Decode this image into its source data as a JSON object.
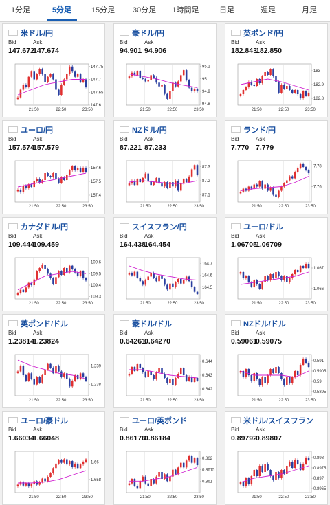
{
  "tabs": [
    {
      "label": "1分足",
      "active": false
    },
    {
      "label": "5分足",
      "active": true
    },
    {
      "label": "15分足",
      "active": false
    },
    {
      "label": "30分足",
      "active": false
    },
    {
      "label": "1時間足",
      "active": false
    },
    {
      "label": "日足",
      "active": false
    },
    {
      "label": "週足",
      "active": false
    },
    {
      "label": "月足",
      "active": false
    }
  ],
  "labels": {
    "bid": "Bid",
    "ask": "Ask"
  },
  "x_ticks": [
    "21:50",
    "22:50",
    "23:50"
  ],
  "colors": {
    "up": "#e03030",
    "down": "#2a3fa0",
    "ma": "#d020d0",
    "accent": "#1a5fb4"
  },
  "pairs": [
    {
      "name": "米ドル/円",
      "flag": "us",
      "bid": "147.672",
      "ask": "147.674",
      "yticks": [
        "147.75",
        "147.7",
        "147.65",
        "147.6"
      ],
      "ylim": [
        147.6,
        147.76
      ],
      "candles": [
        147.63,
        147.66,
        147.68,
        147.67,
        147.71,
        147.73,
        147.7,
        147.72,
        147.74,
        147.72,
        147.69,
        147.71,
        147.72,
        147.7,
        147.66,
        147.64,
        147.68,
        147.7,
        147.72,
        147.75,
        147.73,
        147.71,
        147.72,
        147.69,
        147.7,
        147.67
      ],
      "ma": [
        147.64,
        147.66,
        147.68,
        147.69,
        147.7,
        147.7
      ]
    },
    {
      "name": "豪ドル/円",
      "flag": "au",
      "bid": "94.901",
      "ask": "94.906",
      "yticks": [
        "95.1",
        "95",
        "94.9",
        "94.8"
      ],
      "ylim": [
        94.79,
        95.12
      ],
      "candles": [
        95.02,
        95.05,
        95.03,
        95.06,
        95.01,
        95.0,
        94.98,
        94.99,
        95.03,
        95.01,
        94.97,
        94.94,
        94.95,
        94.88,
        94.84,
        94.9,
        94.97,
        94.94,
        94.98,
        95.03,
        95.07,
        94.99,
        94.93,
        94.9,
        94.92,
        94.9
      ],
      "ma": [
        95.04,
        95.02,
        95.0,
        94.97,
        94.95,
        94.93
      ]
    },
    {
      "name": "英ポンド/円",
      "flag": "uk",
      "bid": "182.843",
      "ask": "182.850",
      "yticks": [
        "183",
        "182.9",
        "182.8"
      ],
      "ylim": [
        182.75,
        183.05
      ],
      "candles": [
        182.83,
        182.86,
        182.88,
        182.92,
        182.9,
        182.89,
        182.94,
        182.91,
        182.96,
        182.99,
        182.97,
        183.01,
        182.96,
        182.92,
        182.84,
        182.9,
        182.87,
        182.89,
        182.86,
        182.84,
        182.86,
        182.83,
        182.8,
        182.85,
        182.82,
        182.84
      ],
      "ma": [
        182.9,
        182.92,
        182.94,
        182.92,
        182.89,
        182.86
      ]
    },
    {
      "name": "ユーロ/円",
      "flag": "eu",
      "bid": "157.574",
      "ask": "157.579",
      "yticks": [
        "157.6",
        "157.5",
        "157.4"
      ],
      "ylim": [
        157.35,
        157.65
      ],
      "candles": [
        157.44,
        157.42,
        157.47,
        157.45,
        157.48,
        157.46,
        157.5,
        157.52,
        157.49,
        157.51,
        157.56,
        157.54,
        157.53,
        157.56,
        157.52,
        157.49,
        157.53,
        157.51,
        157.55,
        157.58,
        157.61,
        157.58,
        157.6,
        157.57,
        157.6,
        157.57
      ],
      "ma": [
        157.46,
        157.48,
        157.5,
        157.52,
        157.54,
        157.56
      ]
    },
    {
      "name": "NZドル/円",
      "flag": "nz",
      "bid": "87.221",
      "ask": "87.233",
      "yticks": [
        "87.3",
        "87.2",
        "87.1"
      ],
      "ylim": [
        87.05,
        87.34
      ],
      "candles": [
        87.18,
        87.2,
        87.17,
        87.21,
        87.19,
        87.22,
        87.25,
        87.2,
        87.17,
        87.19,
        87.22,
        87.18,
        87.16,
        87.19,
        87.15,
        87.19,
        87.16,
        87.2,
        87.13,
        87.18,
        87.21,
        87.19,
        87.23,
        87.28,
        87.31,
        87.24
      ],
      "ma": [
        87.19,
        87.2,
        87.19,
        87.18,
        87.18,
        87.2
      ]
    },
    {
      "name": "ランド/円",
      "flag": "za",
      "bid": "7.770",
      "ask": "7.779",
      "yticks": [
        "7.78",
        "7.76"
      ],
      "ylim": [
        7.745,
        7.785
      ],
      "candles": [
        7.755,
        7.758,
        7.756,
        7.76,
        7.758,
        7.762,
        7.76,
        7.765,
        7.758,
        7.762,
        7.756,
        7.759,
        7.752,
        7.75,
        7.756,
        7.76,
        7.763,
        7.766,
        7.77,
        7.768,
        7.774,
        7.778,
        7.782,
        7.779,
        7.776,
        7.773
      ],
      "ma": [
        7.756,
        7.758,
        7.759,
        7.76,
        7.764,
        7.77
      ]
    },
    {
      "name": "カナダドル/円",
      "flag": "ca",
      "bid": "109.444",
      "ask": "109.459",
      "yticks": [
        "109.6",
        "109.5",
        "109.4",
        "109.3"
      ],
      "ylim": [
        109.28,
        109.64
      ],
      "candles": [
        109.33,
        109.36,
        109.34,
        109.38,
        109.42,
        109.4,
        109.45,
        109.52,
        109.55,
        109.58,
        109.54,
        109.5,
        109.46,
        109.41,
        109.47,
        109.52,
        109.49,
        109.55,
        109.51,
        109.57,
        109.54,
        109.51,
        109.48,
        109.52,
        109.46,
        109.44
      ],
      "ma": [
        109.36,
        109.42,
        109.48,
        109.5,
        109.52,
        109.5
      ]
    },
    {
      "name": "スイスフラン/円",
      "flag": "ch",
      "bid": "164.438",
      "ask": "164.454",
      "yticks": [
        "164.7",
        "164.6",
        "164.5"
      ],
      "ylim": [
        164.4,
        164.75
      ],
      "candles": [
        164.62,
        164.6,
        164.63,
        164.58,
        164.55,
        164.52,
        164.56,
        164.59,
        164.62,
        164.58,
        164.55,
        164.6,
        164.57,
        164.52,
        164.48,
        164.53,
        164.5,
        164.54,
        164.57,
        164.53,
        164.56,
        164.59,
        164.55,
        164.5,
        164.46,
        164.44
      ],
      "ma": [
        164.68,
        164.64,
        164.61,
        164.59,
        164.57,
        164.56
      ]
    },
    {
      "name": "ユーロ/ドル",
      "flag": "eu",
      "bid": "1.06705",
      "ask": "1.06709",
      "yticks": [
        "1.067",
        "1.066"
      ],
      "ylim": [
        1.0655,
        1.0675
      ],
      "candles": [
        1.0668,
        1.0665,
        1.0666,
        1.0663,
        1.0661,
        1.0664,
        1.0662,
        1.066,
        1.0663,
        1.0666,
        1.0664,
        1.0667,
        1.0665,
        1.0668,
        1.0666,
        1.0664,
        1.0666,
        1.0663,
        1.0665,
        1.0667,
        1.0669,
        1.0668,
        1.0671,
        1.067,
        1.0672,
        1.067
      ],
      "ma": [
        1.0662,
        1.0663,
        1.0664,
        1.0665,
        1.0666,
        1.0668
      ]
    },
    {
      "name": "英ポンド/ドル",
      "flag": "uk",
      "bid": "1.23814",
      "ask": "1.23824",
      "yticks": [
        "1.239",
        "1.238"
      ],
      "ylim": [
        1.2374,
        1.2396
      ],
      "candles": [
        1.2387,
        1.239,
        1.2385,
        1.2382,
        1.2386,
        1.2383,
        1.238,
        1.2384,
        1.2381,
        1.2385,
        1.2388,
        1.2391,
        1.2389,
        1.2386,
        1.239,
        1.2387,
        1.2384,
        1.2386,
        1.2383,
        1.2379,
        1.2382,
        1.2385,
        1.2383,
        1.2386,
        1.2384,
        1.2382
      ],
      "ma": [
        1.2393,
        1.239,
        1.2388,
        1.2386,
        1.2385,
        1.2383
      ]
    },
    {
      "name": "豪ドル/ドル",
      "flag": "au",
      "bid": "0.64261",
      "ask": "0.64270",
      "yticks": [
        "0.644",
        "0.643",
        "0.642"
      ],
      "ylim": [
        0.6415,
        0.6445
      ],
      "candles": [
        0.6431,
        0.6436,
        0.6433,
        0.6438,
        0.6435,
        0.6432,
        0.6429,
        0.6433,
        0.643,
        0.6427,
        0.6432,
        0.6435,
        0.6431,
        0.6428,
        0.6424,
        0.6427,
        0.6423,
        0.6428,
        0.6431,
        0.6435,
        0.643,
        0.6426,
        0.6429,
        0.6425,
        0.6428,
        0.6426
      ],
      "ma": [
        0.6434,
        0.6434,
        0.6432,
        0.643,
        0.6429,
        0.6428
      ]
    },
    {
      "name": "NZドル/ドル",
      "flag": "nz",
      "bid": "0.59061",
      "ask": "0.59075",
      "yticks": [
        "0.591",
        "0.5905",
        "0.59",
        "0.5895"
      ],
      "ylim": [
        0.5893,
        0.5913
      ],
      "candles": [
        0.5905,
        0.5902,
        0.5906,
        0.5903,
        0.59,
        0.5904,
        0.5901,
        0.5898,
        0.5902,
        0.5899,
        0.5903,
        0.5906,
        0.5904,
        0.5907,
        0.5904,
        0.5901,
        0.5898,
        0.5902,
        0.5899,
        0.5902,
        0.5905,
        0.5903,
        0.5908,
        0.5911,
        0.5909,
        0.5907
      ],
      "ma": [
        0.5905,
        0.5903,
        0.5903,
        0.5903,
        0.5902,
        0.5905
      ]
    },
    {
      "name": "ユーロ/豪ドル",
      "flag": "eu",
      "bid": "1.66034",
      "ask": "1.66048",
      "yticks": [
        "1.66",
        "1.658"
      ],
      "ylim": [
        1.6565,
        1.6612
      ],
      "candles": [
        1.6574,
        1.6577,
        1.6573,
        1.6576,
        1.6572,
        1.6575,
        1.6578,
        1.6574,
        1.6577,
        1.6581,
        1.6578,
        1.6583,
        1.6587,
        1.6593,
        1.6598,
        1.6602,
        1.6599,
        1.6603,
        1.6597,
        1.6601,
        1.6594,
        1.6598,
        1.6593,
        1.6597,
        1.66,
        1.6603
      ],
      "ma": [
        1.6576,
        1.6576,
        1.6577,
        1.658,
        1.6585,
        1.659
      ]
    },
    {
      "name": "ユーロ/英ポンド",
      "flag": "eu",
      "bid": "0.86176",
      "ask": "0.86184",
      "yticks": [
        "0.862",
        "0.8615",
        "0.861"
      ],
      "ylim": [
        0.8605,
        0.8623
      ],
      "candles": [
        0.8609,
        0.8611,
        0.8608,
        0.8607,
        0.861,
        0.8612,
        0.8609,
        0.8608,
        0.8611,
        0.8609,
        0.8612,
        0.8614,
        0.8611,
        0.8613,
        0.861,
        0.8612,
        0.8615,
        0.8613,
        0.8616,
        0.8618,
        0.8616,
        0.8619,
        0.8621,
        0.8618,
        0.862,
        0.8617
      ],
      "ma": [
        0.861,
        0.861,
        0.8611,
        0.8612,
        0.8614,
        0.8616
      ]
    },
    {
      "name": "米ドル/スイスフラン",
      "flag": "us",
      "bid": "0.89792",
      "ask": "0.89807",
      "yticks": [
        "0.898",
        "0.8975",
        "0.897",
        "0.8965"
      ],
      "ylim": [
        0.8963,
        0.8983
      ],
      "candles": [
        0.8968,
        0.8966,
        0.897,
        0.8967,
        0.8971,
        0.8974,
        0.8971,
        0.8976,
        0.8973,
        0.8977,
        0.8974,
        0.8971,
        0.8969,
        0.8973,
        0.897,
        0.8974,
        0.8972,
        0.8976,
        0.8978,
        0.8975,
        0.8979,
        0.8977,
        0.8974,
        0.8977,
        0.898,
        0.8979
      ],
      "ma": [
        0.8968,
        0.897,
        0.8971,
        0.8972,
        0.8974,
        0.8976
      ]
    }
  ]
}
